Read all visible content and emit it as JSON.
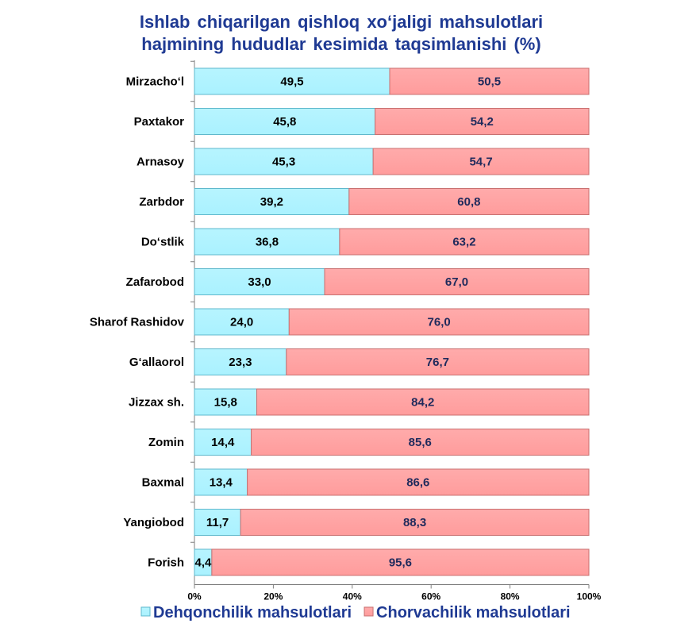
{
  "chart_data": {
    "type": "bar",
    "orientation": "horizontal",
    "stacked": true,
    "title_lines": [
      "Ishlab  chiqarilgan  qishloq  xo‘jaligi  mahsulotlari",
      "hajmining  hududlar  kesimida  taqsimlanishi  (%)"
    ],
    "categories": [
      "Mirzacho‘l",
      "Paxtakor",
      "Arnasoy",
      "Zarbdor",
      "Do‘stlik",
      "Zafarobod",
      "Sharof Rashidov",
      "G‘allaorol",
      "Jizzax sh.",
      "Zomin",
      "Baxmal",
      "Yangiobod",
      "Forish"
    ],
    "series": [
      {
        "name": "Dehqonchilik mahsulotlari",
        "color": "#aaf2ff",
        "values": [
          49.5,
          45.8,
          45.3,
          39.2,
          36.8,
          33.0,
          24.0,
          23.3,
          15.8,
          14.4,
          13.4,
          11.7,
          4.4
        ],
        "labels": [
          "49,5",
          "45,8",
          "45,3",
          "39,2",
          "36,8",
          "33,0",
          "24,0",
          "23,3",
          "15,8",
          "14,4",
          "13,4",
          "11,7",
          "4,4"
        ]
      },
      {
        "name": "Chorvachilik mahsulotlari",
        "color": "#ff9c9c",
        "values": [
          50.5,
          54.2,
          54.7,
          60.8,
          63.2,
          67.0,
          76.0,
          76.7,
          84.2,
          85.6,
          86.6,
          88.3,
          95.6
        ],
        "labels": [
          "50,5",
          "54,2",
          "54,7",
          "60,8",
          "63,2",
          "67,0",
          "76,0",
          "76,7",
          "84,2",
          "85,6",
          "86,6",
          "88,3",
          "95,6"
        ]
      }
    ],
    "xlim": [
      0,
      100
    ],
    "x_ticks": [
      "0%",
      "20%",
      "40%",
      "60%",
      "80%",
      "100%"
    ],
    "grid": false,
    "legend_position": "bottom"
  }
}
